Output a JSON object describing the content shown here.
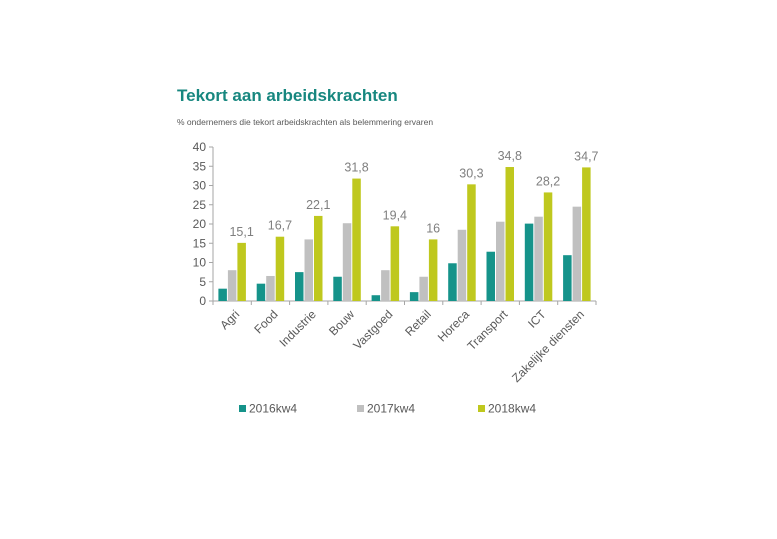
{
  "chart_data": {
    "type": "bar",
    "title": "Tekort aan arbeidskrachten",
    "subtitle": "% ondernemers die tekort arbeidskrachten als belemmering ervaren",
    "categories": [
      "Agri",
      "Food",
      "Industrie",
      "Bouw",
      "Vastgoed",
      "Retail",
      "Horeca",
      "Transport",
      "ICT",
      "Zakelijke diensten"
    ],
    "series": [
      {
        "name": "2016kw4",
        "color": "#15938a",
        "values": [
          3.2,
          4.5,
          7.5,
          6.3,
          1.5,
          2.3,
          9.8,
          12.8,
          20.1,
          11.9
        ]
      },
      {
        "name": "2017kw4",
        "color": "#c0c0c0",
        "values": [
          8.0,
          6.5,
          16.0,
          20.2,
          8.0,
          6.3,
          18.5,
          20.6,
          21.9,
          24.5
        ]
      },
      {
        "name": "2018kw4",
        "color": "#bfc81e",
        "values": [
          15.1,
          16.7,
          22.1,
          31.8,
          19.4,
          16,
          30.3,
          34.8,
          28.2,
          34.7
        ]
      }
    ],
    "data_labels": [
      "15,1",
      "16,7",
      "22,1",
      "31,8",
      "19,4",
      "16",
      "30,3",
      "34,8",
      "28,2",
      "34,7"
    ],
    "yticks": [
      "0",
      "5",
      "10",
      "15",
      "20",
      "25",
      "30",
      "35",
      "40"
    ],
    "ylim": [
      0,
      40
    ],
    "xlabel": "",
    "ylabel": "",
    "grid": false,
    "legend": "bottom"
  }
}
